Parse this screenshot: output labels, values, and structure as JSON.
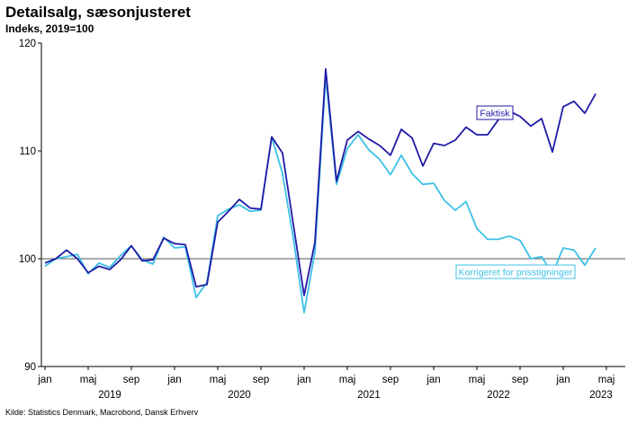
{
  "title": "Detailsalg, sæsonjusteret",
  "subtitle": "Indeks, 2019=100",
  "source": "Kilde: Statistics Denmark, Macrobond, Dansk Erhverv",
  "chart_data": {
    "type": "line",
    "ylim": [
      90,
      120
    ],
    "yticks": [
      90,
      100,
      110,
      120
    ],
    "reference_line": 100,
    "xlim": [
      0,
      53
    ],
    "xticks": [
      {
        "i": 0,
        "label": "jan"
      },
      {
        "i": 4,
        "label": "maj"
      },
      {
        "i": 8,
        "label": "sep"
      },
      {
        "i": 12,
        "label": "jan"
      },
      {
        "i": 16,
        "label": "maj"
      },
      {
        "i": 20,
        "label": "sep"
      },
      {
        "i": 24,
        "label": "jan"
      },
      {
        "i": 28,
        "label": "maj"
      },
      {
        "i": 32,
        "label": "sep"
      },
      {
        "i": 36,
        "label": "jan"
      },
      {
        "i": 40,
        "label": "maj"
      },
      {
        "i": 44,
        "label": "sep"
      },
      {
        "i": 48,
        "label": "jan"
      },
      {
        "i": 52,
        "label": "maj"
      }
    ],
    "years": [
      {
        "i": 6,
        "label": "2019"
      },
      {
        "i": 18,
        "label": "2020"
      },
      {
        "i": 30,
        "label": "2021"
      },
      {
        "i": 42,
        "label": "2022"
      },
      {
        "i": 51.5,
        "label": "2023"
      }
    ],
    "start": "2019-01",
    "series": [
      {
        "name": "Faktisk",
        "color": "#1f1aa6",
        "label_at_index": 44,
        "values": [
          99.6,
          100.0,
          100.8,
          100.0,
          98.7,
          99.3,
          99.0,
          99.9,
          101.2,
          99.8,
          99.9,
          101.9,
          101.4,
          101.3,
          97.4,
          97.6,
          103.4,
          104.4,
          105.5,
          104.7,
          104.6,
          111.3,
          109.8,
          103.2,
          96.6,
          101.5,
          117.6,
          107.2,
          111.0,
          111.8,
          111.1,
          110.5,
          109.6,
          112.0,
          111.2,
          108.6,
          110.7,
          110.5,
          111.0,
          112.2,
          111.5,
          111.5,
          112.9,
          113.7,
          113.2,
          112.3,
          113.0,
          109.9,
          114.1,
          114.6,
          113.5,
          115.3
        ]
      },
      {
        "name": "Korrigeret for prisstigninger",
        "color": "#3cc0e6",
        "label_at_index": 44,
        "values": [
          99.3,
          100.0,
          100.2,
          100.4,
          98.6,
          99.6,
          99.2,
          100.3,
          101.2,
          99.9,
          99.5,
          102.0,
          101.0,
          101.1,
          96.4,
          97.8,
          104.0,
          104.6,
          105.0,
          104.4,
          104.5,
          111.3,
          107.9,
          101.9,
          95.0,
          100.6,
          116.9,
          106.9,
          110.2,
          111.5,
          110.1,
          109.2,
          107.8,
          109.6,
          107.9,
          106.9,
          107.0,
          105.4,
          104.5,
          105.3,
          102.8,
          101.8,
          101.8,
          102.1,
          101.7,
          100.0,
          100.2,
          98.6,
          101.0,
          100.8,
          99.4,
          101.0
        ]
      }
    ]
  }
}
